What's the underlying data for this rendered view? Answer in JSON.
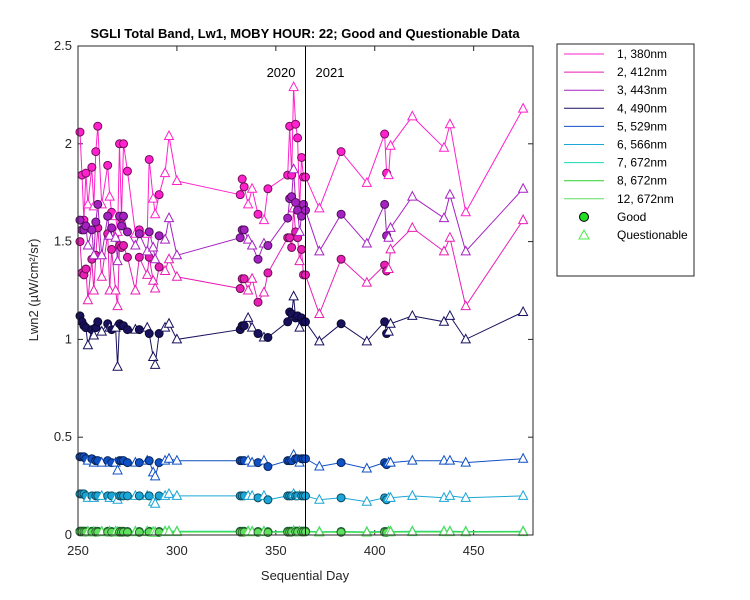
{
  "chart_data": {
    "type": "line",
    "title": "SGLI Total Band, Lw1, MOBY HOUR: 22;  Good and Questionable Data",
    "xlabel": "Sequential Day",
    "ylabel": "Lwn2 (µW/cm²/sr)",
    "xlim": [
      250,
      480
    ],
    "ylim": [
      0,
      2.5
    ],
    "xticks": [
      250,
      300,
      350,
      400,
      450
    ],
    "yticks": [
      0,
      0.5,
      1,
      1.5,
      2,
      2.5
    ],
    "ytick_labels": [
      "0",
      "0.5",
      "1",
      "1.5",
      "2",
      "2.5"
    ],
    "year_divider_x": 365,
    "year_labels": [
      "2020",
      "2021"
    ],
    "legend_position": "outside-right",
    "x": [
      251,
      252,
      253,
      254,
      255,
      257,
      258,
      259,
      260,
      262,
      265,
      266,
      267,
      269,
      270,
      271,
      272,
      273,
      275,
      279,
      281,
      285,
      286,
      288,
      289,
      291,
      294,
      296,
      300,
      332,
      333,
      334,
      336,
      338,
      341,
      344,
      346,
      356,
      357,
      358,
      359,
      360,
      361,
      362,
      363,
      364,
      365,
      372,
      383,
      396,
      405,
      406,
      407,
      408,
      419,
      435,
      438,
      446,
      475
    ],
    "quality": [
      "good",
      "good",
      "good",
      "good",
      "questionable",
      "good",
      "questionable",
      "good",
      "good",
      "questionable",
      "good",
      "questionable",
      "good",
      "questionable",
      "questionable",
      "good",
      "good",
      "good",
      "good",
      "questionable",
      "good",
      "questionable",
      "good",
      "questionable",
      "questionable",
      "good",
      "questionable",
      "questionable",
      "questionable",
      "good",
      "good",
      "good",
      "questionable",
      "questionable",
      "good",
      "questionable",
      "good",
      "good",
      "good",
      "good",
      "questionable",
      "good",
      "good",
      "questionable",
      "good",
      "good",
      "good",
      "questionable",
      "good",
      "questionable",
      "good",
      "good",
      "questionable",
      "questionable",
      "questionable",
      "questionable",
      "questionable",
      "questionable",
      "questionable"
    ],
    "series": [
      {
        "name": "1, 380nm",
        "color": "#ff21cc",
        "values": [
          2.06,
          1.84,
          1.61,
          1.85,
          1.69,
          1.88,
          1.68,
          1.96,
          2.09,
          1.69,
          1.89,
          1.73,
          1.65,
          1.63,
          1.55,
          2.0,
          1.62,
          2.0,
          1.86,
          1.54,
          1.56,
          1.54,
          1.92,
          1.72,
          1.64,
          1.74,
          1.85,
          2.04,
          1.81,
          1.74,
          1.82,
          1.78,
          1.69,
          1.77,
          1.64,
          1.61,
          1.77,
          1.84,
          2.09,
          1.84,
          2.29,
          2.1,
          2.03,
          1.66,
          1.93,
          1.83,
          1.83,
          1.67,
          1.96,
          1.8,
          2.05,
          1.85,
          1.84,
          1.99,
          2.14,
          1.98,
          2.1,
          1.65,
          2.18
        ]
      },
      {
        "name": "2, 412nm",
        "color": "#e81eb5",
        "values": [
          1.5,
          1.34,
          1.33,
          1.36,
          1.2,
          1.41,
          1.25,
          1.43,
          1.57,
          1.32,
          1.54,
          1.25,
          1.46,
          1.25,
          1.17,
          1.48,
          1.47,
          1.48,
          1.42,
          1.25,
          1.42,
          1.33,
          1.42,
          1.3,
          1.26,
          1.37,
          1.35,
          1.41,
          1.32,
          1.26,
          1.31,
          1.31,
          1.25,
          1.31,
          1.19,
          1.24,
          1.34,
          1.52,
          1.52,
          1.47,
          1.67,
          1.55,
          1.52,
          1.4,
          1.46,
          1.33,
          1.33,
          1.13,
          1.41,
          1.29,
          1.38,
          1.35,
          1.36,
          1.46,
          1.57,
          1.45,
          1.52,
          1.17,
          1.61
        ]
      },
      {
        "name": "3, 443nm",
        "color": "#a621c2",
        "values": [
          1.61,
          1.56,
          1.56,
          1.58,
          1.48,
          1.56,
          1.43,
          1.6,
          1.69,
          1.43,
          1.63,
          1.53,
          1.57,
          1.52,
          1.4,
          1.63,
          1.58,
          1.63,
          1.55,
          1.48,
          1.54,
          1.45,
          1.55,
          1.47,
          1.41,
          1.53,
          1.51,
          1.62,
          1.43,
          1.52,
          1.56,
          1.56,
          1.51,
          1.48,
          1.41,
          1.49,
          1.48,
          1.62,
          1.72,
          1.73,
          1.87,
          1.7,
          1.66,
          1.55,
          1.63,
          1.69,
          1.66,
          1.45,
          1.64,
          1.49,
          1.69,
          1.53,
          1.52,
          1.57,
          1.73,
          1.62,
          1.74,
          1.45,
          1.77
        ]
      },
      {
        "name": "4, 490nm",
        "color": "#18115e",
        "values": [
          1.12,
          1.09,
          1.07,
          1.06,
          0.97,
          1.05,
          1.02,
          1.06,
          1.09,
          1.04,
          1.08,
          1.06,
          1.05,
          1.06,
          0.86,
          1.08,
          1.07,
          1.07,
          1.05,
          1.05,
          1.05,
          1.06,
          1.03,
          0.91,
          0.87,
          1.03,
          1.06,
          1.08,
          1.0,
          1.05,
          1.07,
          1.07,
          1.11,
          1.06,
          1.03,
          1.01,
          1.01,
          1.09,
          1.14,
          1.13,
          1.22,
          1.11,
          1.12,
          1.06,
          1.11,
          1.09,
          1.09,
          0.99,
          1.08,
          0.99,
          1.09,
          1.03,
          1.04,
          1.08,
          1.12,
          1.09,
          1.12,
          1.0,
          1.14
        ]
      },
      {
        "name": "5, 529nm",
        "color": "#0f50c4",
        "values": [
          0.4,
          0.4,
          0.4,
          0.39,
          0.38,
          0.39,
          0.37,
          0.38,
          0.38,
          0.37,
          0.38,
          0.37,
          0.37,
          0.37,
          0.33,
          0.38,
          0.38,
          0.38,
          0.37,
          0.37,
          0.37,
          0.38,
          0.38,
          0.32,
          0.3,
          0.37,
          0.38,
          0.39,
          0.38,
          0.38,
          0.38,
          0.38,
          0.38,
          0.37,
          0.37,
          0.38,
          0.35,
          0.38,
          0.38,
          0.38,
          0.41,
          0.39,
          0.39,
          0.37,
          0.39,
          0.39,
          0.39,
          0.35,
          0.37,
          0.34,
          0.37,
          0.36,
          0.37,
          0.37,
          0.38,
          0.38,
          0.38,
          0.37,
          0.39
        ]
      },
      {
        "name": "6, 566nm",
        "color": "#1aa6d6",
        "values": [
          0.21,
          0.21,
          0.21,
          0.2,
          0.19,
          0.2,
          0.19,
          0.2,
          0.2,
          0.2,
          0.2,
          0.19,
          0.2,
          0.19,
          0.18,
          0.2,
          0.2,
          0.2,
          0.2,
          0.2,
          0.2,
          0.2,
          0.2,
          0.17,
          0.16,
          0.2,
          0.2,
          0.21,
          0.2,
          0.2,
          0.2,
          0.2,
          0.2,
          0.2,
          0.19,
          0.2,
          0.18,
          0.2,
          0.2,
          0.2,
          0.21,
          0.2,
          0.2,
          0.2,
          0.2,
          0.2,
          0.2,
          0.18,
          0.19,
          0.17,
          0.19,
          0.18,
          0.19,
          0.19,
          0.2,
          0.19,
          0.2,
          0.19,
          0.2
        ]
      },
      {
        "name": "7, 672nm",
        "color": "#19d6b0",
        "values": [
          0.02,
          0.02,
          0.02,
          0.019,
          0.018,
          0.019,
          0.017,
          0.019,
          0.019,
          0.018,
          0.019,
          0.018,
          0.018,
          0.018,
          0.016,
          0.019,
          0.019,
          0.019,
          0.018,
          0.018,
          0.018,
          0.019,
          0.019,
          0.016,
          0.015,
          0.018,
          0.019,
          0.02,
          0.019,
          0.019,
          0.019,
          0.019,
          0.019,
          0.018,
          0.018,
          0.019,
          0.017,
          0.019,
          0.019,
          0.019,
          0.021,
          0.02,
          0.02,
          0.018,
          0.02,
          0.02,
          0.02,
          0.017,
          0.018,
          0.016,
          0.018,
          0.017,
          0.018,
          0.018,
          0.019,
          0.019,
          0.019,
          0.018,
          0.019
        ]
      },
      {
        "name": "8, 672nm",
        "color": "#2bd12b",
        "values": [
          0.018,
          0.018,
          0.018,
          0.017,
          0.016,
          0.017,
          0.015,
          0.017,
          0.017,
          0.016,
          0.017,
          0.016,
          0.016,
          0.016,
          0.014,
          0.017,
          0.017,
          0.017,
          0.016,
          0.016,
          0.016,
          0.017,
          0.017,
          0.014,
          0.013,
          0.016,
          0.017,
          0.018,
          0.017,
          0.017,
          0.017,
          0.017,
          0.017,
          0.016,
          0.016,
          0.017,
          0.015,
          0.017,
          0.017,
          0.017,
          0.019,
          0.018,
          0.018,
          0.016,
          0.018,
          0.018,
          0.018,
          0.015,
          0.016,
          0.014,
          0.016,
          0.015,
          0.016,
          0.016,
          0.017,
          0.017,
          0.017,
          0.016,
          0.017
        ]
      },
      {
        "name": "12, 672nm",
        "color": "#5fe05f",
        "values": [
          0.016,
          0.016,
          0.016,
          0.015,
          0.014,
          0.015,
          0.013,
          0.015,
          0.015,
          0.014,
          0.015,
          0.014,
          0.014,
          0.014,
          0.012,
          0.015,
          0.015,
          0.015,
          0.014,
          0.014,
          0.014,
          0.015,
          0.015,
          0.012,
          0.011,
          0.014,
          0.015,
          0.016,
          0.015,
          0.015,
          0.015,
          0.015,
          0.015,
          0.014,
          0.014,
          0.015,
          0.013,
          0.015,
          0.015,
          0.015,
          0.017,
          0.016,
          0.016,
          0.014,
          0.016,
          0.016,
          0.016,
          0.013,
          0.014,
          0.012,
          0.014,
          0.013,
          0.014,
          0.014,
          0.015,
          0.015,
          0.015,
          0.014,
          0.015
        ]
      }
    ],
    "marker_legend": [
      {
        "name": "Good",
        "marker": "circle",
        "color": "#22dd22"
      },
      {
        "name": "Questionable",
        "marker": "triangle",
        "color": "#44ee44"
      }
    ]
  }
}
